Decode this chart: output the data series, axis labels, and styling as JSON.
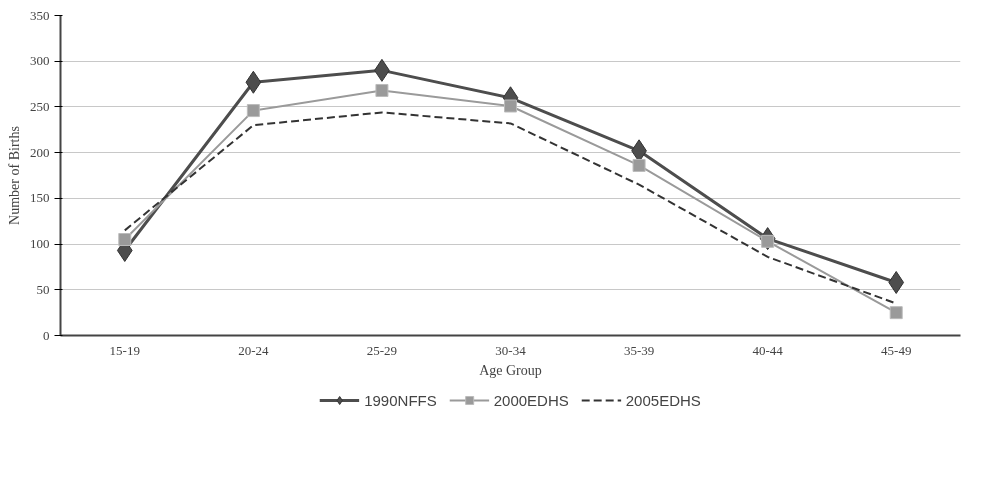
{
  "chart_data": {
    "type": "line",
    "xlabel": "Age Group",
    "ylabel": "Number of Births",
    "categories": [
      "15-19",
      "20-24",
      "25-29",
      "30-34",
      "35-39",
      "40-44",
      "45-49"
    ],
    "series": [
      {
        "name": "1990NFFS",
        "color": "#4d4d4d",
        "marker": "diamond",
        "line_style": "solid",
        "values": [
          93,
          277,
          290,
          260,
          202,
          106,
          58
        ]
      },
      {
        "name": "2000EDHS",
        "color": "#9a9a9a",
        "marker": "square",
        "line_style": "solid",
        "values": [
          105,
          246,
          268,
          251,
          186,
          103,
          25
        ]
      },
      {
        "name": "2005EDHS",
        "color": "#333333",
        "marker": "none",
        "line_style": "dashed",
        "values": [
          115,
          230,
          244,
          232,
          165,
          86,
          35
        ]
      }
    ],
    "ylim": [
      0,
      350
    ],
    "yticks": [
      0,
      50,
      100,
      150,
      200,
      250,
      300,
      350
    ],
    "grid": "y",
    "legend": "bottom"
  }
}
